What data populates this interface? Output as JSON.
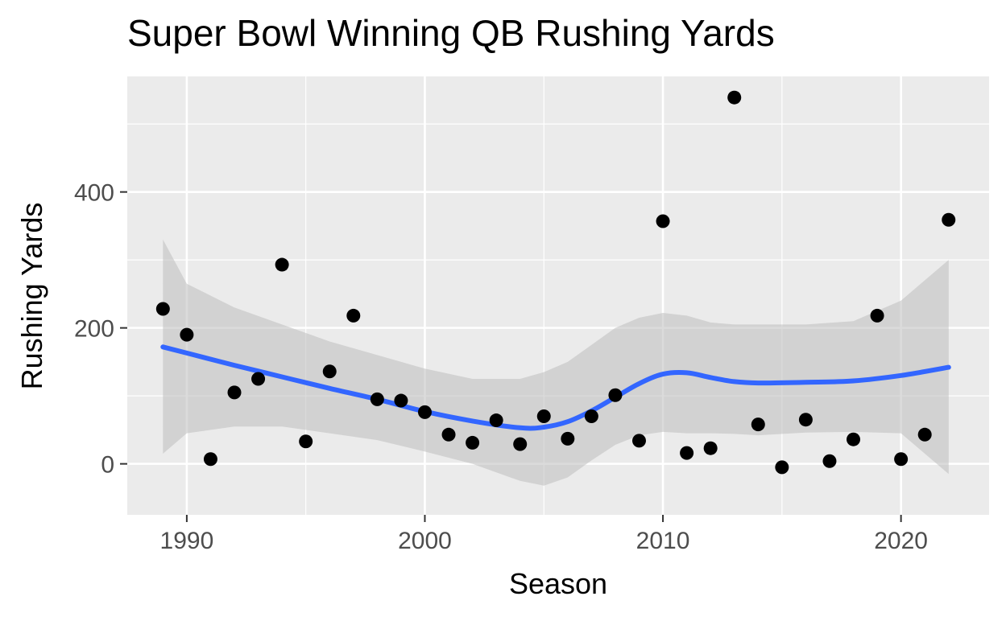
{
  "chart_data": {
    "type": "scatter",
    "title": "Super Bowl Winning QB Rushing Yards",
    "xlabel": "Season",
    "ylabel": "Rushing Yards",
    "xlim": [
      1987.5,
      2023.7
    ],
    "ylim": [
      -75,
      570
    ],
    "x_ticks": [
      1990,
      2000,
      2010,
      2020
    ],
    "y_ticks": [
      0,
      200,
      400
    ],
    "grid": true,
    "colors": {
      "panel": "#ebebeb",
      "grid": "#ffffff",
      "points": "#000000",
      "smooth": "#3366ff",
      "ribbon": "#bdbdbd"
    },
    "points": [
      {
        "x": 1989,
        "y": 228
      },
      {
        "x": 1990,
        "y": 190
      },
      {
        "x": 1991,
        "y": 7
      },
      {
        "x": 1992,
        "y": 105
      },
      {
        "x": 1993,
        "y": 125
      },
      {
        "x": 1994,
        "y": 293
      },
      {
        "x": 1995,
        "y": 33
      },
      {
        "x": 1996,
        "y": 136
      },
      {
        "x": 1997,
        "y": 218
      },
      {
        "x": 1998,
        "y": 95
      },
      {
        "x": 1999,
        "y": 93
      },
      {
        "x": 2000,
        "y": 76
      },
      {
        "x": 2001,
        "y": 43
      },
      {
        "x": 2002,
        "y": 31
      },
      {
        "x": 2003,
        "y": 64
      },
      {
        "x": 2004,
        "y": 29
      },
      {
        "x": 2005,
        "y": 70
      },
      {
        "x": 2006,
        "y": 37
      },
      {
        "x": 2007,
        "y": 70
      },
      {
        "x": 2008,
        "y": 101
      },
      {
        "x": 2009,
        "y": 34
      },
      {
        "x": 2010,
        "y": 357
      },
      {
        "x": 2011,
        "y": 16
      },
      {
        "x": 2012,
        "y": 23
      },
      {
        "x": 2013,
        "y": 539
      },
      {
        "x": 2014,
        "y": 58
      },
      {
        "x": 2015,
        "y": -5
      },
      {
        "x": 2016,
        "y": 65
      },
      {
        "x": 2017,
        "y": 4
      },
      {
        "x": 2018,
        "y": 36
      },
      {
        "x": 2019,
        "y": 218
      },
      {
        "x": 2020,
        "y": 7
      },
      {
        "x": 2021,
        "y": 43
      },
      {
        "x": 2022,
        "y": 359
      }
    ],
    "smooth": {
      "x": [
        1989,
        1990,
        1992,
        1994,
        1996,
        1998,
        2000,
        2002,
        2004,
        2005,
        2006,
        2007,
        2008,
        2009,
        2010,
        2011,
        2012,
        2013,
        2014,
        2016,
        2018,
        2020,
        2022
      ],
      "y": [
        172,
        163,
        145,
        128,
        111,
        95,
        77,
        63,
        53,
        54,
        62,
        78,
        98,
        118,
        132,
        134,
        127,
        121,
        119,
        120,
        122,
        130,
        142
      ],
      "lower": [
        15,
        45,
        55,
        55,
        45,
        35,
        18,
        0,
        -25,
        -32,
        -20,
        5,
        28,
        42,
        47,
        45,
        45,
        44,
        42,
        46,
        47,
        45,
        -15
      ],
      "upper": [
        330,
        265,
        230,
        205,
        180,
        160,
        140,
        125,
        125,
        135,
        150,
        175,
        200,
        215,
        222,
        218,
        208,
        205,
        205,
        205,
        210,
        240,
        300
      ]
    }
  }
}
